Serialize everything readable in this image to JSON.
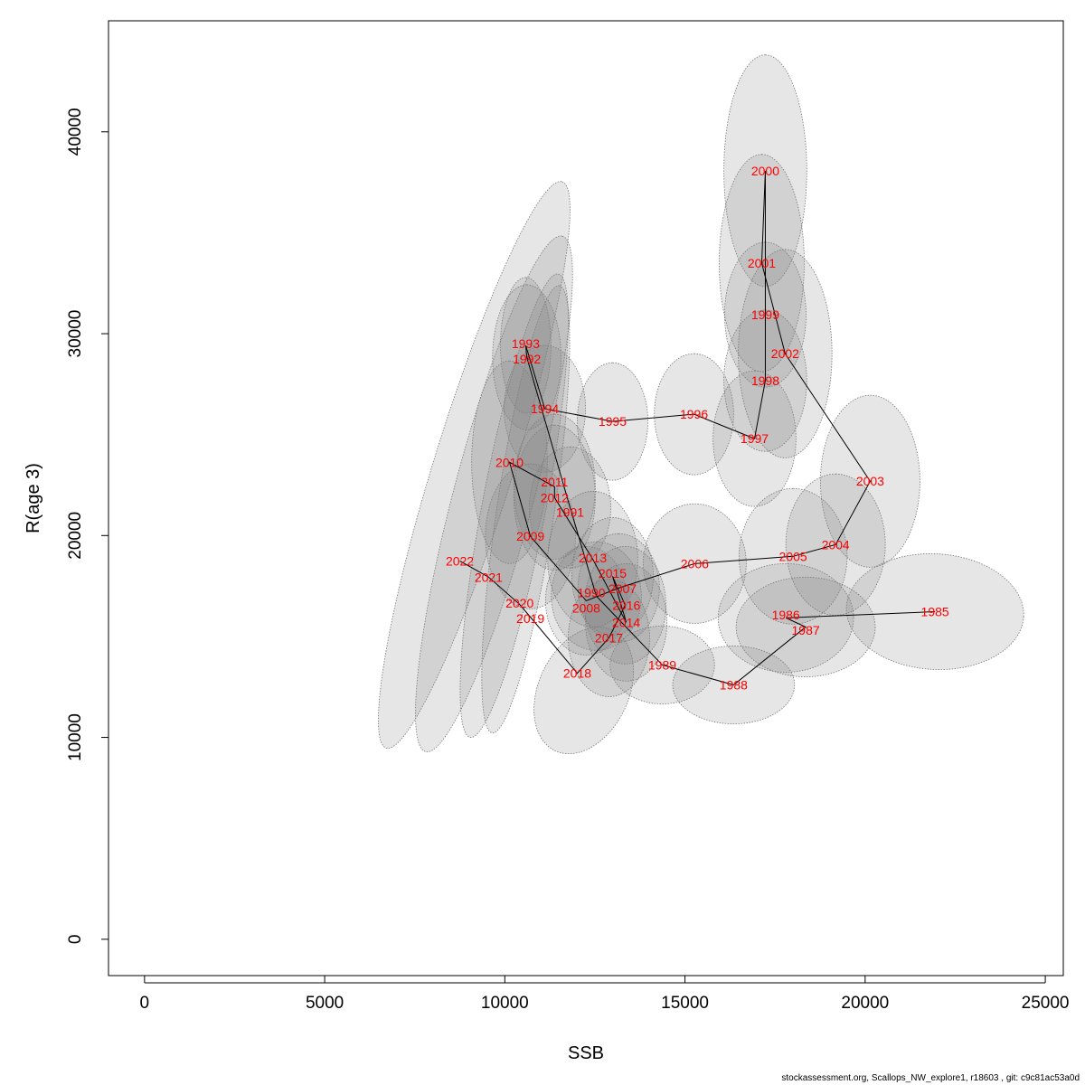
{
  "chart_data": {
    "type": "scatter",
    "xlabel": "SSB",
    "ylabel": "R(age 3)",
    "xlim": [
      -1000,
      25500
    ],
    "ylim": [
      -1800,
      45500
    ],
    "xticks": [
      0,
      5000,
      10000,
      15000,
      20000,
      25000
    ],
    "yticks": [
      0,
      10000,
      20000,
      30000,
      40000
    ],
    "grid": false,
    "connected_in_year_order": true,
    "colors": {
      "labels": "#ff0000",
      "ellipse_fill": "#808080",
      "line": "#000000"
    },
    "points": [
      {
        "year": "1985",
        "ssb": 21940,
        "r": 16230,
        "ex": 2460,
        "ey": 2870,
        "rho": -0.05
      },
      {
        "year": "1986",
        "ssb": 17800,
        "r": 15920,
        "ex": 1880,
        "ey": 2690,
        "rho": 0
      },
      {
        "year": "1987",
        "ssb": 18350,
        "r": 15470,
        "ex": 1930,
        "ey": 2470,
        "rho": 0
      },
      {
        "year": "1988",
        "ssb": 16350,
        "r": 12600,
        "ex": 1690,
        "ey": 1930,
        "rho": 0
      },
      {
        "year": "1989",
        "ssb": 14370,
        "r": 13590,
        "ex": 1450,
        "ey": 1930,
        "rho": 0
      },
      {
        "year": "1990",
        "ssb": 12540,
        "r": 17000,
        "ex": 1250,
        "ey": 2690,
        "rho": 0
      },
      {
        "year": "1991",
        "ssb": 11810,
        "r": 21390,
        "ex": 1130,
        "ey": 3000,
        "rho": 0
      },
      {
        "year": "1992",
        "ssb": 10610,
        "r": 28830,
        "ex": 950,
        "ey": 3590,
        "rho": 0
      },
      {
        "year": "1993",
        "ssb": 10580,
        "r": 29420,
        "ex": 700,
        "ey": 3360,
        "rho": 0
      },
      {
        "year": "1994",
        "ssb": 11110,
        "r": 26280,
        "ex": 1130,
        "ey": 3140,
        "rho": 0
      },
      {
        "year": "1995",
        "ssb": 12990,
        "r": 25650,
        "ex": 980,
        "ey": 2910,
        "rho": 0
      },
      {
        "year": "1996",
        "ssb": 15250,
        "r": 26010,
        "ex": 1100,
        "ey": 3000,
        "rho": 0
      },
      {
        "year": "1997",
        "ssb": 16930,
        "r": 24800,
        "ex": 1150,
        "ey": 3360,
        "rho": 0
      },
      {
        "year": "1998",
        "ssb": 17230,
        "r": 27670,
        "ex": 1150,
        "ey": 3500,
        "rho": 0
      },
      {
        "year": "1999",
        "ssb": 17230,
        "r": 30940,
        "ex": 1130,
        "ey": 3590,
        "rho": 0
      },
      {
        "year": "2000",
        "ssb": 17230,
        "r": 38070,
        "ex": 1150,
        "ey": 5740,
        "rho": 0
      },
      {
        "year": "2001",
        "ssb": 17130,
        "r": 33500,
        "ex": 1180,
        "ey": 5380,
        "rho": 0
      },
      {
        "year": "2002",
        "ssb": 17780,
        "r": 29010,
        "ex": 1300,
        "ey": 5160,
        "rho": 0
      },
      {
        "year": "2003",
        "ssb": 20140,
        "r": 22690,
        "ex": 1380,
        "ey": 4260,
        "rho": 0
      },
      {
        "year": "2004",
        "ssb": 19180,
        "r": 19550,
        "ex": 1380,
        "ey": 3500,
        "rho": 0
      },
      {
        "year": "2005",
        "ssb": 18000,
        "r": 18970,
        "ex": 1500,
        "ey": 3360,
        "rho": 0
      },
      {
        "year": "2006",
        "ssb": 15270,
        "r": 18610,
        "ex": 1430,
        "ey": 2960,
        "rho": 0
      },
      {
        "year": "2007",
        "ssb": 13160,
        "r": 17400,
        "ex": 1130,
        "ey": 2690,
        "rho": 0
      },
      {
        "year": "2008",
        "ssb": 12260,
        "r": 16770,
        "ex": 1130,
        "ey": 2690,
        "rho": 0
      },
      {
        "year": "2009",
        "ssb": 10710,
        "r": 19960,
        "ex": 1250,
        "ey": 3590,
        "rho": 0
      },
      {
        "year": "2010",
        "ssb": 10130,
        "r": 23630,
        "ex": 1050,
        "ey": 5020,
        "rho": 0
      },
      {
        "year": "2011",
        "ssb": 11380,
        "r": 22420,
        "ex": 1130,
        "ey": 3590,
        "rho": 0
      },
      {
        "year": "2012",
        "ssb": 11380,
        "r": 21880,
        "ex": 1130,
        "ey": 3590,
        "rho": 0
      },
      {
        "year": "2013",
        "ssb": 12440,
        "r": 18830,
        "ex": 1250,
        "ey": 3360,
        "rho": 0
      },
      {
        "year": "2014",
        "ssb": 13370,
        "r": 15700,
        "ex": 1130,
        "ey": 2910,
        "rho": 0
      },
      {
        "year": "2015",
        "ssb": 12990,
        "r": 17980,
        "ex": 1130,
        "ey": 2910,
        "rho": 0
      },
      {
        "year": "2016",
        "ssb": 13340,
        "r": 16550,
        "ex": 1130,
        "ey": 2910,
        "rho": 0
      },
      {
        "year": "2017",
        "ssb": 12890,
        "r": 14930,
        "ex": 1130,
        "ey": 2910,
        "rho": 0
      },
      {
        "year": "2018",
        "ssb": 12010,
        "r": 13180,
        "ex": 1380,
        "ey": 3140,
        "rho": 0.3,
        "essb": 12190,
        "er": 12330
      },
      {
        "year": "2019",
        "ssb": 10710,
        "r": 15960,
        "ex": 1220,
        "ey": 11080,
        "rho": 0.75,
        "essb": 10580,
        "er": 21300
      },
      {
        "year": "2020",
        "ssb": 10410,
        "r": 16590,
        "ex": 1500,
        "ey": 11480,
        "rho": 0.8,
        "essb": 10260,
        "er": 21480
      },
      {
        "year": "2021",
        "ssb": 9550,
        "r": 17940,
        "ex": 2180,
        "ey": 12780,
        "rho": 0.85,
        "essb": 9700,
        "er": 22060
      },
      {
        "year": "2022",
        "ssb": 8750,
        "r": 18740,
        "ex": 2660,
        "ey": 14040,
        "rho": 0.9,
        "essb": 9150,
        "er": 23500
      }
    ]
  },
  "footer": "stockassessment.org, Scallops_NW_explore1, r18603 , git: c9c81ac53a0d"
}
